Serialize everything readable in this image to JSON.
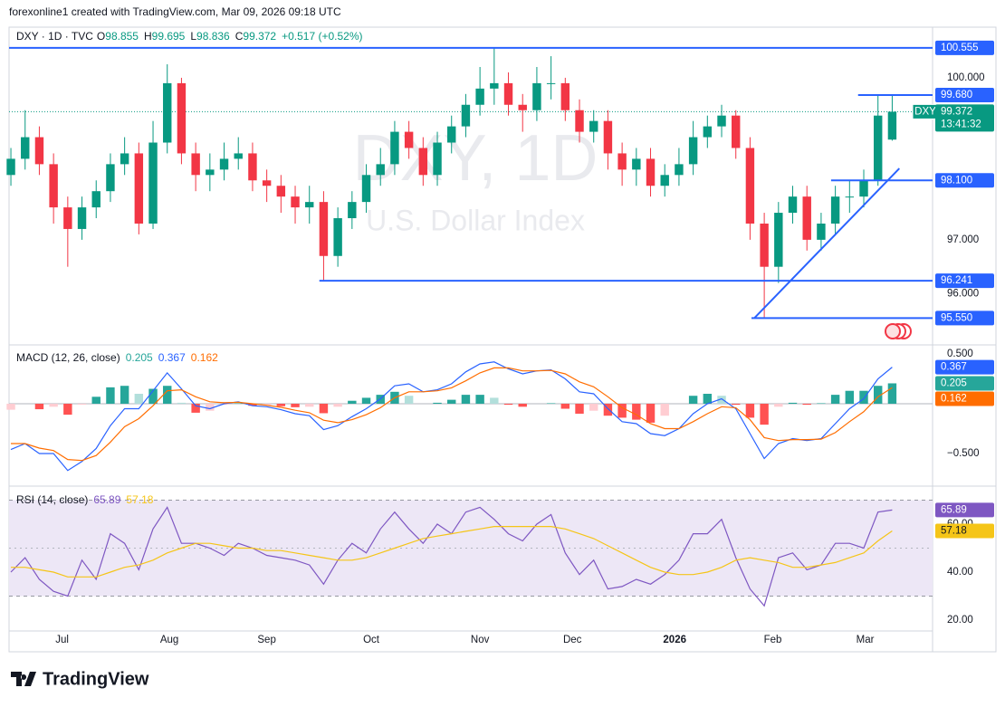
{
  "header": {
    "attribution": "forexonline1 created with TradingView.com, Mar 09, 2026 09:18 UTC",
    "brand": "TradingView"
  },
  "chart_data": [
    {
      "type": "candlestick",
      "symbol": "DXY · 1D · TVC",
      "ohlc_legend": [
        {
          "label": "O",
          "value": 98.855
        },
        {
          "label": "H",
          "value": 99.695
        },
        {
          "label": "L",
          "value": 98.836
        },
        {
          "label": "C",
          "value": 99.372
        }
      ],
      "change": "+0.517 (+0.52%)",
      "watermark": "DXY, 1D",
      "watermark_subtitle": "U.S. Dollar Index",
      "x": [
        0,
        1,
        2,
        3,
        4,
        5,
        6,
        7,
        8,
        9,
        10,
        11,
        12,
        13,
        14,
        15,
        16,
        17,
        18,
        19,
        20,
        21,
        22,
        23,
        24,
        25,
        26,
        27,
        28,
        29,
        30,
        31,
        32,
        33,
        34,
        35,
        36,
        37,
        38,
        39,
        40,
        41,
        42,
        43,
        44,
        45,
        46,
        47,
        48,
        49,
        50,
        51,
        52,
        53,
        54,
        55,
        56,
        57,
        58,
        59,
        60,
        61,
        62
      ],
      "open": [
        98.2,
        98.5,
        98.9,
        98.4,
        97.6,
        97.2,
        97.6,
        97.9,
        98.4,
        98.6,
        97.3,
        98.8,
        99.9,
        98.6,
        98.2,
        98.3,
        98.5,
        98.6,
        98.1,
        98.0,
        97.8,
        97.6,
        97.7,
        96.7,
        97.4,
        97.7,
        98.2,
        98.4,
        99.0,
        98.7,
        98.2,
        98.8,
        99.1,
        99.5,
        99.8,
        99.9,
        99.5,
        99.4,
        99.9,
        99.9,
        99.4,
        99.0,
        99.2,
        98.6,
        98.3,
        98.5,
        98.0,
        98.2,
        98.4,
        98.9,
        99.1,
        99.3,
        98.7,
        97.3,
        96.5,
        97.5,
        97.8,
        97.0,
        97.3,
        97.8,
        97.8,
        98.1,
        98.855
      ],
      "high": [
        98.7,
        99.4,
        99.1,
        98.6,
        97.8,
        97.8,
        98.1,
        98.6,
        98.9,
        98.8,
        99.2,
        100.25,
        100.0,
        98.8,
        98.6,
        98.8,
        98.9,
        98.8,
        98.3,
        98.2,
        98.0,
        98.0,
        97.9,
        97.6,
        97.9,
        98.4,
        98.7,
        99.2,
        99.2,
        98.9,
        99.0,
        99.3,
        99.7,
        100.2,
        100.555,
        100.1,
        99.7,
        100.2,
        100.4,
        100.0,
        99.6,
        99.4,
        99.4,
        98.8,
        98.7,
        98.7,
        98.4,
        98.7,
        99.2,
        99.3,
        99.5,
        99.4,
        98.9,
        97.5,
        97.7,
        98.0,
        98.0,
        97.5,
        98.0,
        98.1,
        98.3,
        99.68,
        99.695
      ],
      "low": [
        98.0,
        98.3,
        98.2,
        97.3,
        96.5,
        97.0,
        97.4,
        97.7,
        98.2,
        97.1,
        97.2,
        98.6,
        98.4,
        97.9,
        97.9,
        98.1,
        98.3,
        97.9,
        97.7,
        97.5,
        97.3,
        97.3,
        96.24,
        96.5,
        97.2,
        97.5,
        98.0,
        98.2,
        98.5,
        98.0,
        98.0,
        98.6,
        98.9,
        99.3,
        99.5,
        99.3,
        99.0,
        99.2,
        99.6,
        99.2,
        98.8,
        98.8,
        98.3,
        98.0,
        98.0,
        97.8,
        97.8,
        98.0,
        98.2,
        98.7,
        98.9,
        98.5,
        97.0,
        95.55,
        96.2,
        97.3,
        96.8,
        96.8,
        97.1,
        97.5,
        97.6,
        98.0,
        98.836
      ],
      "close": [
        98.5,
        98.9,
        98.4,
        97.6,
        97.2,
        97.6,
        97.9,
        98.4,
        98.6,
        97.3,
        98.8,
        99.9,
        98.6,
        98.2,
        98.3,
        98.5,
        98.6,
        98.1,
        98.0,
        97.8,
        97.6,
        97.7,
        96.7,
        97.4,
        97.7,
        98.2,
        98.4,
        99.0,
        98.7,
        98.2,
        98.8,
        99.1,
        99.5,
        99.8,
        99.9,
        99.5,
        99.4,
        99.9,
        99.9,
        99.4,
        99.0,
        99.2,
        98.6,
        98.3,
        98.5,
        98.0,
        98.2,
        98.4,
        98.9,
        99.1,
        99.3,
        98.7,
        97.3,
        96.5,
        97.5,
        97.8,
        97.0,
        97.3,
        97.8,
        97.8,
        98.1,
        99.3,
        99.372
      ],
      "up_color": "#089981",
      "down_color": "#f23645",
      "xlim": [
        -0.13,
        64.84
      ],
      "xticks": [
        {
          "value": 3.6,
          "label": "Jul"
        },
        {
          "value": 11.15,
          "label": "Aug"
        },
        {
          "value": 18.0,
          "label": "Sep"
        },
        {
          "value": 25.35,
          "label": "Oct"
        },
        {
          "value": 33.0,
          "label": "Nov"
        },
        {
          "value": 39.5,
          "label": "Dec"
        },
        {
          "value": 46.7,
          "label": "2026"
        },
        {
          "value": 53.6,
          "label": "Feb"
        },
        {
          "value": 60.1,
          "label": "Mar"
        }
      ],
      "ylim": [
        95.07,
        100.77
      ],
      "yticks": [
        {
          "value": 96,
          "label": "96.000"
        },
        {
          "value": 97,
          "label": "97.000"
        },
        {
          "value": 100,
          "label": "100.000"
        }
      ],
      "levels": [
        {
          "price": 100.555,
          "from": -0.13
        },
        {
          "price": {
            "value": 99.68,
            "label": "99.680"
          },
          "from": 59.6
        },
        {
          "price": {
            "value": 98.1,
            "label": "98.100"
          },
          "from": 57.7
        },
        {
          "price": 96.241,
          "from": 21.7
        },
        {
          "price": {
            "value": 95.55,
            "label": "95.550"
          },
          "from": 52.1
        }
      ],
      "level_color": "#2962ff",
      "trendline": {
        "x": [
          52.3,
          62.5
        ],
        "y": [
          95.55,
          98.32
        ]
      },
      "price_tag": {
        "symbol": "DXY",
        "countdown": "13:41:32"
      }
    },
    {
      "type": "macd",
      "title": "MACD (12, 26, close)",
      "ylim": [
        -0.809,
        0.582
      ],
      "yticks": [
        {
          "value": 0.5,
          "label": "0.500"
        },
        {
          "value": -0.5,
          "label": "−0.500"
        }
      ],
      "baseline": 0,
      "series": [
        {
          "color": "#2962ff",
          "values": [
            -0.46,
            -0.4,
            -0.5,
            -0.5,
            -0.67,
            -0.58,
            -0.45,
            -0.22,
            -0.05,
            -0.05,
            0.13,
            0.31,
            0.15,
            -0.02,
            -0.05,
            0.0,
            0.02,
            -0.02,
            -0.03,
            -0.06,
            -0.1,
            -0.12,
            -0.26,
            -0.22,
            -0.13,
            -0.05,
            0.05,
            0.18,
            0.2,
            0.12,
            0.14,
            0.2,
            0.32,
            0.4,
            0.42,
            0.35,
            0.3,
            0.33,
            0.34,
            0.25,
            0.12,
            0.1,
            -0.05,
            -0.18,
            -0.2,
            -0.3,
            -0.32,
            -0.25,
            -0.1,
            0.0,
            0.05,
            -0.05,
            -0.3,
            -0.55,
            -0.4,
            -0.35,
            -0.37,
            -0.35,
            -0.2,
            -0.05,
            0.05,
            0.25,
            0.367
          ]
        },
        {
          "color": "#ff6d00",
          "values": [
            -0.4,
            -0.4,
            -0.445,
            -0.47,
            -0.56,
            -0.57,
            -0.52,
            -0.385,
            -0.23,
            -0.15,
            -0.02,
            0.13,
            0.14,
            0.07,
            0.02,
            0.01,
            0.015,
            0.0,
            -0.015,
            -0.035,
            -0.065,
            -0.09,
            -0.165,
            -0.19,
            -0.16,
            -0.11,
            -0.04,
            0.06,
            0.12,
            0.12,
            0.13,
            0.16,
            0.23,
            0.31,
            0.36,
            0.36,
            0.33,
            0.33,
            0.335,
            0.3,
            0.22,
            0.17,
            0.07,
            -0.04,
            -0.11,
            -0.2,
            -0.25,
            -0.25,
            -0.18,
            -0.1,
            -0.03,
            -0.04,
            -0.16,
            -0.34,
            -0.37,
            -0.36,
            -0.36,
            -0.355,
            -0.29,
            -0.18,
            -0.08,
            0.07,
            0.162
          ]
        },
        {
          "kind": "histogram",
          "colors": [
            "#26a69a",
            "#b2dfdb",
            "#ffcdd2",
            "#ff5252"
          ],
          "values": [
            -0.06,
            0,
            -0.055,
            -0.03,
            -0.11,
            -0.01,
            0.07,
            0.165,
            0.18,
            0.1,
            0.15,
            0.18,
            0.01,
            -0.09,
            -0.07,
            -0.01,
            0.005,
            -0.02,
            -0.015,
            -0.025,
            -0.035,
            -0.03,
            -0.095,
            -0.03,
            0.03,
            0.06,
            0.09,
            0.12,
            0.08,
            0.0,
            0.01,
            0.04,
            0.09,
            0.09,
            0.06,
            -0.01,
            -0.03,
            0.0,
            0.005,
            -0.05,
            -0.1,
            -0.07,
            -0.12,
            -0.14,
            -0.16,
            -0.19,
            -0.12,
            0.0,
            0.08,
            0.1,
            0.08,
            -0.01,
            -0.14,
            -0.21,
            -0.03,
            0.01,
            -0.01,
            0.005,
            0.09,
            0.13,
            0.13,
            0.18,
            0.205
          ]
        }
      ]
    },
    {
      "type": "rsi",
      "title": "RSI (14, close)",
      "ylim": [
        15.5,
        74.7
      ],
      "yticks": [
        {
          "value": 20,
          "label": "20.00"
        },
        {
          "value": 40,
          "label": "40.00"
        },
        {
          "value": 60,
          "label": "60.00"
        }
      ],
      "band": [
        30,
        70
      ],
      "midline": 50,
      "band_color": "#ede7f6",
      "series": [
        {
          "color": "#7e57c2",
          "values": [
            40,
            46,
            37,
            32,
            30,
            45,
            37,
            56,
            52,
            41,
            58,
            67,
            52,
            52,
            50,
            47,
            52,
            50,
            47,
            46,
            45,
            43,
            35,
            45,
            52,
            48,
            58,
            65,
            58,
            52,
            60,
            56,
            65,
            67,
            62,
            56,
            53,
            60,
            64,
            48,
            39,
            45,
            33,
            34,
            37,
            35,
            39,
            45,
            56,
            56,
            62,
            46,
            33,
            26,
            46,
            48,
            41,
            43,
            52,
            52,
            50,
            65,
            65.89
          ]
        },
        {
          "color": "#f5c518",
          "values": [
            42,
            42,
            41,
            40,
            38,
            38,
            38,
            40,
            42,
            43,
            45,
            48,
            50,
            52,
            52,
            51,
            50,
            50,
            49,
            49,
            48,
            47,
            46,
            45,
            45,
            46,
            48,
            50,
            52,
            54,
            55,
            56,
            57,
            58,
            59,
            59,
            59,
            59,
            59,
            58,
            56,
            54,
            51,
            48,
            45,
            42,
            40,
            39,
            39,
            40,
            42,
            45,
            46,
            45,
            44,
            42,
            42,
            43,
            44,
            46,
            48,
            53,
            57.18
          ]
        }
      ]
    }
  ]
}
